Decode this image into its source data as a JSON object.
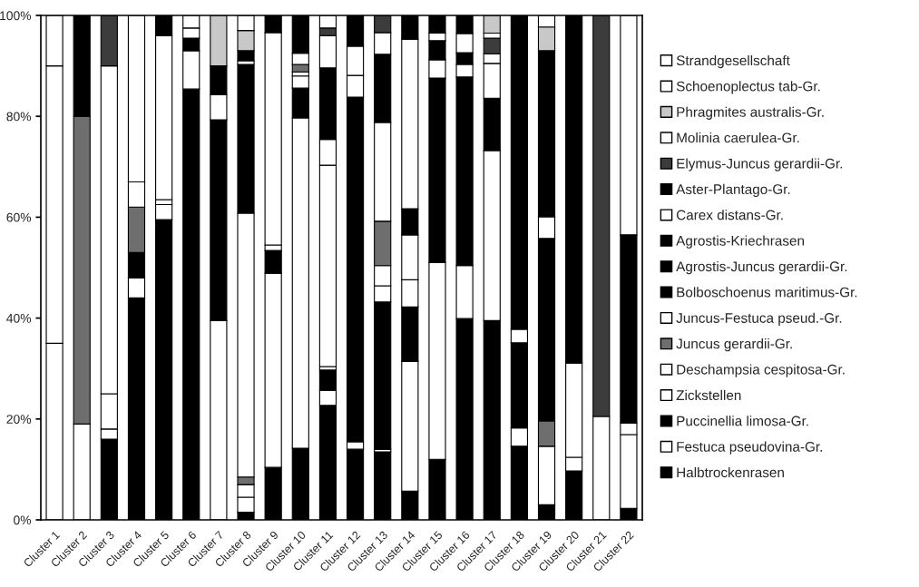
{
  "chart_data": {
    "type": "bar",
    "stacked": true,
    "legend": "right",
    "grid": false,
    "categories": [
      "Cluster 1",
      "Cluster 2",
      "Cluster 3",
      "Cluster 4",
      "Cluster 5",
      "Cluster 6",
      "Cluster 7",
      "Cluster 8",
      "Cluster 9",
      "Cluster 10",
      "Cluster 11",
      "Cluster 12",
      "Cluster 13",
      "Cluster 14",
      "Cluster 15",
      "Cluster 16",
      "Cluster 17",
      "Cluster 18",
      "Cluster 19",
      "Cluster 20",
      "Cluster 21",
      "Cluster 22"
    ],
    "ylim": [
      0,
      100
    ],
    "yticks": [
      {
        "value": 0,
        "label": "0%"
      },
      {
        "value": 20,
        "label": "20%"
      },
      {
        "value": 40,
        "label": "40%"
      },
      {
        "value": 60,
        "label": "60%"
      },
      {
        "value": 80,
        "label": "80%"
      },
      {
        "value": 100,
        "label": "100%"
      }
    ],
    "series": [
      {
        "name": "Halbtrockenrasen",
        "color": "#000000",
        "values": [
          null,
          null,
          16,
          44,
          59.5,
          85.4,
          null,
          1.5,
          10.4,
          14.2,
          22.7,
          14,
          13.5,
          5.7,
          12,
          39.9,
          39.5,
          14.6,
          3,
          9.7,
          null,
          2.3
        ]
      },
      {
        "name": "Festuca pseudovina-Gr.",
        "color": "#ffffff",
        "values": [
          35,
          19,
          2,
          4,
          3,
          7.6,
          39.5,
          3,
          38.5,
          65.5,
          3,
          1.5,
          0.5,
          25.7,
          39,
          10.5,
          33.7,
          3.6,
          11.6,
          2.7,
          20.5,
          14.6
        ]
      },
      {
        "name": "Puccinellia limosa-Gr.",
        "color": "#000000",
        "values": [
          null,
          null,
          null,
          5,
          null,
          2.5,
          39.8,
          null,
          4.5,
          5.9,
          4,
          68.3,
          29.2,
          10.8,
          36.6,
          37.4,
          10.4,
          16.9,
          null,
          null,
          null,
          null
        ]
      },
      {
        "name": "Zickstellen",
        "color": "#ffffff",
        "values": [
          55,
          null,
          7,
          null,
          1,
          2,
          5,
          2.5,
          1.1,
          2.4,
          0.7,
          4.3,
          3.2,
          5.4,
          3.6,
          2.5,
          6.9,
          2.7,
          null,
          18.7,
          null,
          2.3
        ]
      },
      {
        "name": "Deschampsia cespitosa-Gr.",
        "color": "#ffffff",
        "values": [
          10,
          null,
          65,
          null,
          32.5,
          2.5,
          null,
          null,
          42.1,
          0.8,
          39.9,
          5.8,
          4,
          8.9,
          null,
          null,
          1.9,
          null,
          null,
          null,
          null,
          null
        ]
      },
      {
        "name": "Juncus gerardii-Gr.",
        "color": "#6e6e6e",
        "values": [
          null,
          61,
          null,
          9,
          null,
          null,
          null,
          1.5,
          null,
          1.5,
          null,
          null,
          8.8,
          null,
          null,
          null,
          null,
          null,
          5,
          null,
          null,
          null
        ]
      },
      {
        "name": "Juncus-Festuca pseud.-Gr.",
        "color": "#ffffff",
        "values": [
          null,
          null,
          null,
          5,
          null,
          null,
          null,
          52.3,
          null,
          2.2,
          5.1,
          null,
          19.6,
          null,
          null,
          null,
          null,
          null,
          null,
          null,
          null,
          null
        ]
      },
      {
        "name": "Bolboschoenus maritimus-Gr.",
        "color": "#000000",
        "values": [
          null,
          20,
          null,
          null,
          4,
          null,
          5.7,
          29.5,
          3.4,
          7.5,
          14.2,
          6.1,
          13.5,
          5.2,
          3.8,
          2.3,
          null,
          62.2,
          36.2,
          68.9,
          null,
          37.3
        ]
      },
      {
        "name": "Agrostis-Juncus gerardii-Gr.",
        "color": "#000000",
        "values": [
          null,
          null,
          null,
          null,
          null,
          null,
          null,
          null,
          null,
          null,
          null,
          null,
          null,
          null,
          null,
          null,
          null,
          null,
          null,
          null,
          null,
          null
        ]
      },
      {
        "name": "Agrostis-Kriechrasen",
        "color": "#000000",
        "values": [
          null,
          null,
          null,
          null,
          null,
          null,
          null,
          null,
          null,
          null,
          null,
          null,
          null,
          null,
          null,
          null,
          null,
          null,
          null,
          null,
          null,
          null
        ]
      },
      {
        "name": "Carex distans-Gr.",
        "color": "#ffffff",
        "values": [
          null,
          null,
          null,
          33,
          null,
          null,
          null,
          0.7,
          null,
          null,
          6.4,
          null,
          4.3,
          33.6,
          1.5,
          3.8,
          null,
          null,
          4.3,
          null,
          null,
          43.5
        ]
      },
      {
        "name": "Aster-Plantago-Gr.",
        "color": "#000000",
        "values": [
          null,
          null,
          null,
          null,
          null,
          null,
          null,
          2,
          null,
          null,
          null,
          null,
          null,
          4.7,
          3.5,
          3.6,
          null,
          null,
          32.9,
          null,
          null,
          null
        ]
      },
      {
        "name": "Elymus-Juncus gerardii-Gr.",
        "color": "#3c3c3c",
        "values": [
          null,
          null,
          10,
          null,
          null,
          null,
          null,
          null,
          null,
          null,
          1.5,
          null,
          3.4,
          null,
          null,
          null,
          3.1,
          null,
          null,
          null,
          79.5,
          null
        ]
      },
      {
        "name": "Molinia caerulea-Gr.",
        "color": "#ffffff",
        "values": [
          null,
          null,
          null,
          null,
          null,
          null,
          null,
          null,
          null,
          null,
          2.5,
          null,
          null,
          null,
          null,
          null,
          1,
          null,
          null,
          null,
          null,
          null
        ]
      },
      {
        "name": "Phragmites australis-Gr.",
        "color": "#c8c8c8",
        "values": [
          null,
          null,
          null,
          null,
          null,
          null,
          10,
          4,
          null,
          null,
          null,
          null,
          null,
          null,
          null,
          null,
          3.5,
          null,
          4.7,
          null,
          null,
          null
        ]
      },
      {
        "name": "Schoenoplectus tab-Gr.",
        "color": "#ffffff",
        "values": [
          null,
          null,
          null,
          null,
          null,
          null,
          null,
          3,
          null,
          null,
          null,
          null,
          null,
          null,
          null,
          null,
          null,
          null,
          2.3,
          null,
          null,
          null
        ]
      },
      {
        "name": "Strandgesellschaft",
        "color": "#ffffff",
        "values": [
          null,
          null,
          null,
          null,
          null,
          null,
          null,
          null,
          null,
          null,
          null,
          null,
          null,
          null,
          null,
          null,
          null,
          null,
          null,
          null,
          null,
          null
        ]
      }
    ]
  }
}
